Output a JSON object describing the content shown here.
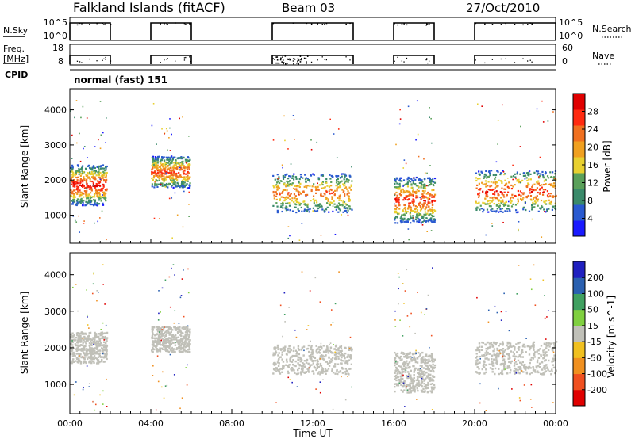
{
  "header": {
    "station": "Falkland Islands (fitACF)",
    "beam": "Beam 03",
    "date": "27/Oct/2010"
  },
  "nsky_strip": {
    "left_label": "N.Sky",
    "right_label": "N.Search",
    "ticks_left": [
      "10^5",
      "10^0"
    ],
    "ticks_right": [
      "10^5",
      "10^0"
    ]
  },
  "freq_strip": {
    "left_label_1": "Freq.",
    "left_label_2": "[MHz]",
    "right_label": "Nave",
    "ticks_left": [
      "18",
      "8"
    ],
    "ticks_right": [
      "60",
      "0"
    ]
  },
  "cpid": {
    "label": "CPID",
    "mode_text": "normal (fast) 151"
  },
  "colors": {
    "power_scale": [
      "#1a1aff",
      "#2a5ad0",
      "#3a8a6a",
      "#5aa05a",
      "#e8d030",
      "#f0a020",
      "#f07020",
      "#ff2a10",
      "#e00000"
    ],
    "velocity_scale": [
      "#2020c0",
      "#2a60b0",
      "#40a060",
      "#80d040",
      "#c0c0b8",
      "#f0c020",
      "#f09020",
      "#f05020",
      "#e00000"
    ],
    "ground_scatter": "#c0c0b8"
  },
  "chart_data": [
    {
      "type": "heatmap",
      "name_label": "Power [dB]",
      "ylabel": "Slant Range [km]",
      "y_ticks": [
        "1000",
        "2000",
        "3000",
        "4000"
      ],
      "ylim": [
        200,
        4600
      ],
      "xlim_hours": [
        0,
        24
      ],
      "colorbar_ticks": [
        "4",
        "8",
        "12",
        "16",
        "20",
        "24",
        "28"
      ],
      "colorbar_range": [
        0,
        30
      ],
      "data_windows_hours": [
        [
          0,
          2
        ],
        [
          4,
          6
        ],
        [
          10,
          14
        ],
        [
          16,
          18
        ],
        [
          20,
          24
        ]
      ],
      "echo_regions": [
        {
          "t0": 0.0,
          "t1": 1.8,
          "r0": 1300,
          "r1": 2450,
          "peak_db": 28
        },
        {
          "t0": 4.0,
          "t1": 5.9,
          "r0": 1800,
          "r1": 2700,
          "peak_db": 24
        },
        {
          "t0": 10.0,
          "t1": 13.9,
          "r0": 1100,
          "r1": 2200,
          "peak_db": 22
        },
        {
          "t0": 16.0,
          "t1": 18.0,
          "r0": 800,
          "r1": 2100,
          "peak_db": 26
        },
        {
          "t0": 20.0,
          "t1": 24.0,
          "r0": 1100,
          "r1": 2300,
          "peak_db": 26
        }
      ]
    },
    {
      "type": "heatmap",
      "name_label": "Velocity [m s^-1]",
      "ylabel": "Slant Range [km]",
      "xlabel": "Time UT",
      "x_ticks": [
        "00:00",
        "04:00",
        "08:00",
        "12:00",
        "16:00",
        "20:00",
        "00:00"
      ],
      "y_ticks": [
        "1000",
        "2000",
        "3000",
        "4000"
      ],
      "ylim": [
        200,
        4600
      ],
      "xlim_hours": [
        0,
        24
      ],
      "colorbar_ticks": [
        "200",
        "100",
        "50",
        "15",
        "-15",
        "-50",
        "-100",
        "-200"
      ],
      "colorbar_range": [
        -250,
        250
      ],
      "echo_regions": [
        {
          "t0": 0.0,
          "t1": 1.8,
          "r0": 1600,
          "r1": 2450,
          "ground_scatter": true
        },
        {
          "t0": 4.0,
          "t1": 5.9,
          "r0": 1900,
          "r1": 2600,
          "ground_scatter": true
        },
        {
          "t0": 10.0,
          "t1": 13.9,
          "r0": 1300,
          "r1": 2100,
          "ground_scatter": true
        },
        {
          "t0": 16.0,
          "t1": 18.0,
          "r0": 800,
          "r1": 1900,
          "ground_scatter": true
        },
        {
          "t0": 20.0,
          "t1": 24.0,
          "r0": 1300,
          "r1": 2200,
          "ground_scatter": true
        }
      ]
    }
  ]
}
